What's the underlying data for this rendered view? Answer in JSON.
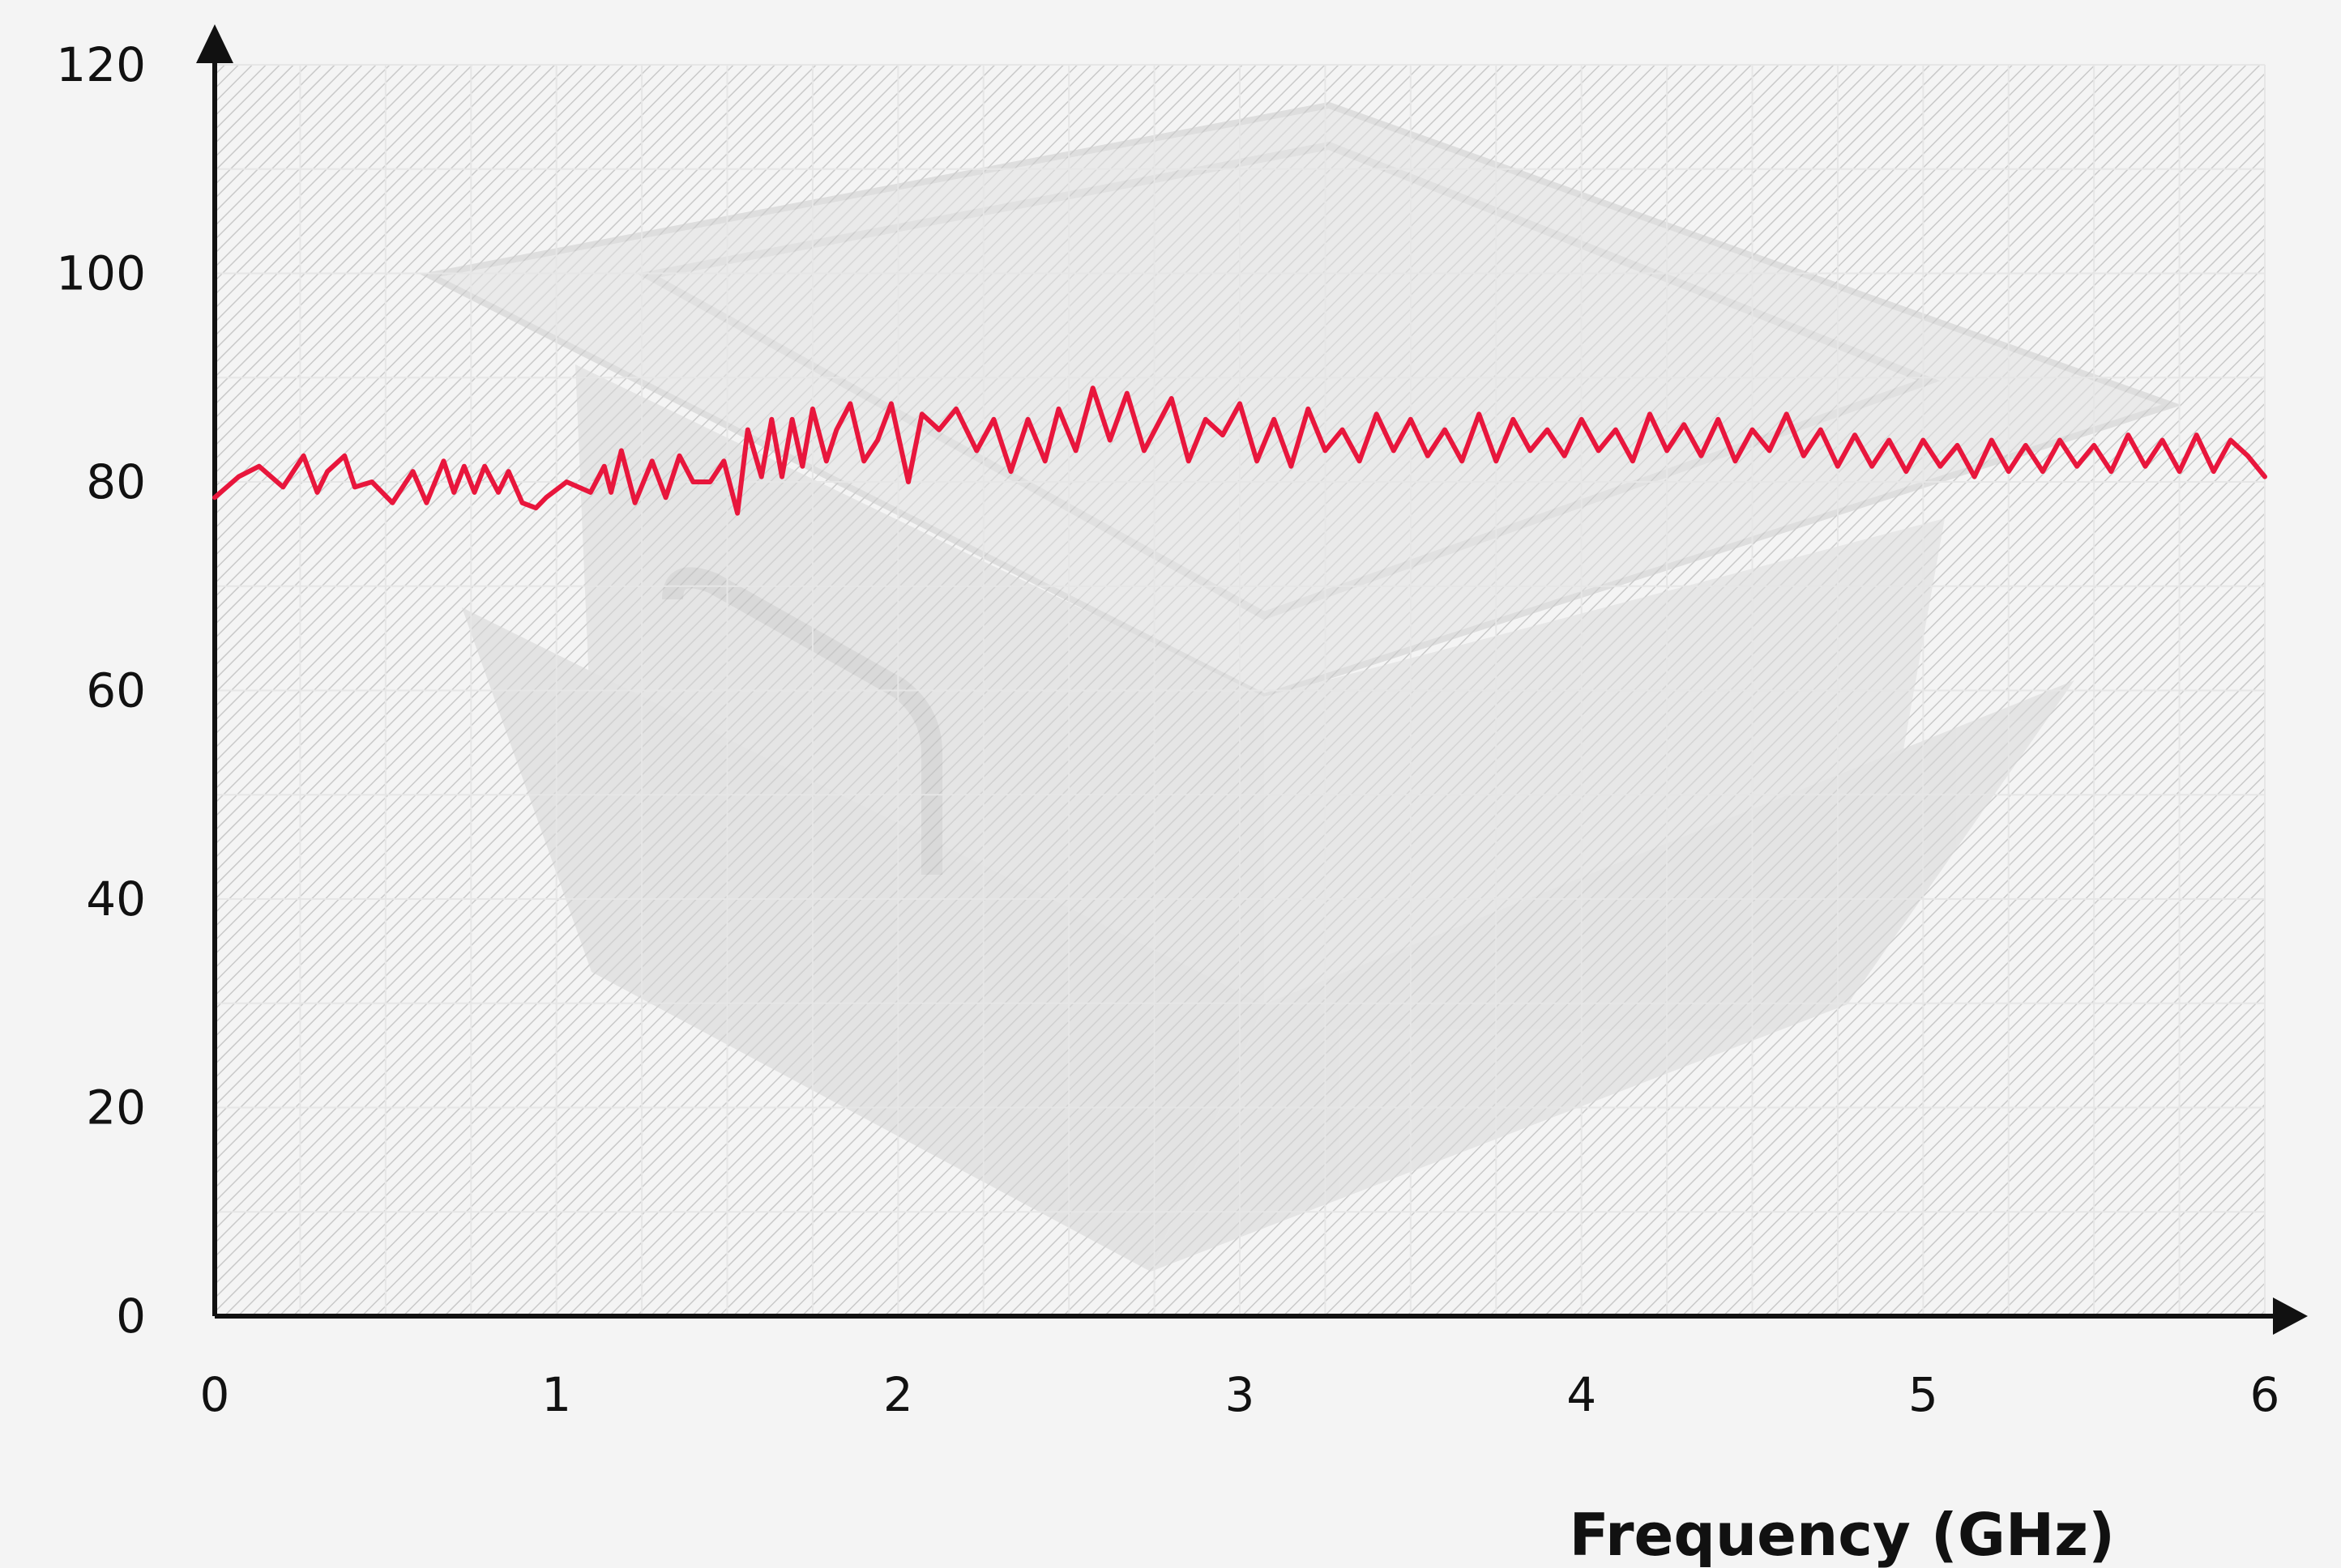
{
  "chart_data": {
    "type": "line",
    "title": "",
    "xlabel": "Frequency (GHz)",
    "ylabel": "",
    "xlim": [
      0,
      6
    ],
    "ylim": [
      0,
      120
    ],
    "xticks": [
      "0",
      "1",
      "2",
      "3",
      "4",
      "5",
      "6"
    ],
    "yticks": [
      "0",
      "20",
      "40",
      "60",
      "80",
      "100",
      "120"
    ],
    "grid": true,
    "background_image": "metal-enclosure-box-watermark",
    "series": [
      {
        "color": "#e8163c",
        "x": [
          0.0,
          0.07,
          0.13,
          0.2,
          0.26,
          0.3,
          0.33,
          0.38,
          0.41,
          0.46,
          0.52,
          0.58,
          0.62,
          0.67,
          0.7,
          0.73,
          0.76,
          0.79,
          0.83,
          0.86,
          0.9,
          0.94,
          0.97,
          1.03,
          1.1,
          1.14,
          1.16,
          1.19,
          1.23,
          1.28,
          1.32,
          1.36,
          1.4,
          1.45,
          1.49,
          1.53,
          1.56,
          1.6,
          1.63,
          1.66,
          1.69,
          1.72,
          1.75,
          1.79,
          1.82,
          1.86,
          1.9,
          1.94,
          1.98,
          2.03,
          2.07,
          2.12,
          2.17,
          2.23,
          2.28,
          2.33,
          2.38,
          2.43,
          2.47,
          2.52,
          2.57,
          2.62,
          2.67,
          2.72,
          2.76,
          2.8,
          2.85,
          2.9,
          2.95,
          3.0,
          3.05,
          3.1,
          3.15,
          3.2,
          3.25,
          3.3,
          3.35,
          3.4,
          3.45,
          3.5,
          3.55,
          3.6,
          3.65,
          3.7,
          3.75,
          3.8,
          3.85,
          3.9,
          3.95,
          4.0,
          4.05,
          4.1,
          4.15,
          4.2,
          4.25,
          4.3,
          4.35,
          4.4,
          4.45,
          4.5,
          4.55,
          4.6,
          4.65,
          4.7,
          4.75,
          4.8,
          4.85,
          4.9,
          4.95,
          5.0,
          5.05,
          5.1,
          5.15,
          5.2,
          5.25,
          5.3,
          5.35,
          5.4,
          5.45,
          5.5,
          5.55,
          5.6,
          5.65,
          5.7,
          5.75,
          5.8,
          5.85,
          5.9,
          5.95,
          6.0
        ],
        "y": [
          78.5,
          80.5,
          81.5,
          79.5,
          82.5,
          79.0,
          81.0,
          82.5,
          79.5,
          80.0,
          78.0,
          81.0,
          78.0,
          82.0,
          79.0,
          81.5,
          79.0,
          81.5,
          79.0,
          81.0,
          78.0,
          77.5,
          78.5,
          80.0,
          79.0,
          81.5,
          79.0,
          83.0,
          78.0,
          82.0,
          78.5,
          82.5,
          80.0,
          80.0,
          82.0,
          77.0,
          85.0,
          80.5,
          86.0,
          80.5,
          86.0,
          81.5,
          87.0,
          82.0,
          85.0,
          87.5,
          82.0,
          84.0,
          87.5,
          80.0,
          86.5,
          85.0,
          87.0,
          83.0,
          86.0,
          81.0,
          86.0,
          82.0,
          87.0,
          83.0,
          89.0,
          84.0,
          88.5,
          83.0,
          85.5,
          88.0,
          82.0,
          86.0,
          84.5,
          87.5,
          82.0,
          86.0,
          81.5,
          87.0,
          83.0,
          85.0,
          82.0,
          86.5,
          83.0,
          86.0,
          82.5,
          85.0,
          82.0,
          86.5,
          82.0,
          86.0,
          83.0,
          85.0,
          82.5,
          86.0,
          83.0,
          85.0,
          82.0,
          86.5,
          83.0,
          85.5,
          82.5,
          86.0,
          82.0,
          85.0,
          83.0,
          86.5,
          82.5,
          85.0,
          81.5,
          84.5,
          81.5,
          84.0,
          81.0,
          84.0,
          81.5,
          83.5,
          80.5,
          84.0,
          81.0,
          83.5,
          81.0,
          84.0,
          81.5,
          83.5,
          81.0,
          84.5,
          81.5,
          84.0,
          81.0,
          84.5,
          81.0,
          84.0,
          82.5,
          80.5
        ]
      }
    ]
  }
}
